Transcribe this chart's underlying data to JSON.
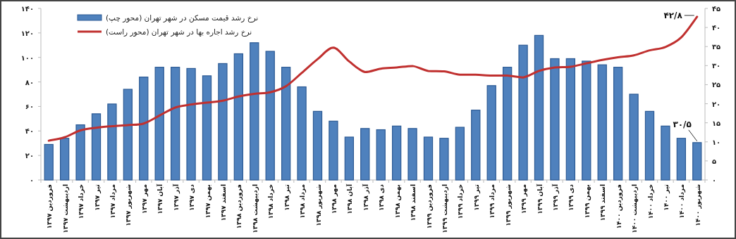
{
  "chart_data": {
    "type": "bar",
    "categories": [
      "فروردین ۱۳۹۷",
      "اردیبهشت ۱۳۹۷",
      "خرداد ۱۳۹۷",
      "تیر ۱۳۹۷",
      "مرداد ۱۳۹۷",
      "شهریور ۱۳۹۷",
      "مهر ۱۳۹۷",
      "آبان ۱۳۹۷",
      "آذر ۱۳۹۷",
      "دی ۱۳۹۷",
      "بهمن ۱۳۹۷",
      "اسفند ۱۳۹۷",
      "فروردین ۱۳۹۸",
      "اردیبهشت ۱۳۹۸",
      "خرداد ۱۳۹۸",
      "تیر ۱۳۹۸",
      "مرداد ۱۳۹۸",
      "شهریور ۱۳۹۸",
      "مهر ۱۳۹۸",
      "آبان ۱۳۹۸",
      "آذر ۱۳۹۸",
      "دی ۱۳۹۸",
      "بهمن ۱۳۹۸",
      "اسفند ۱۳۹۸",
      "فروردین ۱۳۹۹",
      "اردیبهشت ۱۳۹۹",
      "خرداد ۱۳۹۹",
      "تیر ۱۳۹۹",
      "مرداد ۱۳۹۹",
      "شهریور ۱۳۹۹",
      "مهر ۱۳۹۹",
      "آبان ۱۳۹۹",
      "آذر ۱۳۹۹",
      "دی ۱۳۹۹",
      "بهمن ۱۳۹۹",
      "اسفند ۱۳۹۹",
      "فروردین ۱۴۰۰",
      "اردیبهشت ۱۴۰۰",
      "خرداد ۱۴۰۰",
      "تیر ۱۴۰۰",
      "مرداد ۱۴۰۰",
      "شهریور ۱۴۰۰"
    ],
    "series": [
      {
        "name": "نرخ رشد قیمت مسکن در شهر تهران (محور چپ)",
        "color": "#4f81bd",
        "values": [
          29,
          34,
          45,
          54,
          62,
          74,
          84,
          92,
          92,
          91,
          85,
          95,
          103,
          112,
          105,
          92,
          76,
          56,
          48,
          35,
          42,
          41,
          44,
          42,
          35,
          34,
          43,
          57,
          77,
          92,
          110,
          118,
          99,
          99,
          97,
          94,
          92,
          70,
          56,
          44,
          34,
          30.5
        ]
      },
      {
        "name": "نرخ رشد اجاره بها در شهر تهران (محور راست)",
        "type": "line",
        "axis": "y2",
        "color": "#c0302f",
        "values": [
          10.3,
          11.2,
          13,
          13.7,
          14.1,
          14.4,
          14.8,
          16.9,
          19,
          19.8,
          20.3,
          20.8,
          21.9,
          22.6,
          23,
          24.6,
          28.1,
          31.7,
          34.7,
          31.1,
          28.3,
          29.2,
          29.5,
          29.9,
          28.6,
          28.5,
          27.6,
          27.6,
          27.4,
          27.4,
          26.9,
          28.6,
          29.5,
          29.7,
          30.6,
          31.5,
          32.2,
          32.7,
          34,
          34.9,
          37.4,
          42.8
        ]
      }
    ],
    "ylim": [
      0,
      140
    ],
    "yticks": [
      {
        "value": 0,
        "label": "۰"
      },
      {
        "value": 20,
        "label": "۲۰"
      },
      {
        "value": 40,
        "label": "۴۰"
      },
      {
        "value": 60,
        "label": "۶۰"
      },
      {
        "value": 80,
        "label": "۸۰"
      },
      {
        "value": 100,
        "label": "۱۰۰"
      },
      {
        "value": 120,
        "label": "۱۲۰"
      },
      {
        "value": 140,
        "label": "۱۴۰"
      }
    ],
    "y2lim": [
      0,
      45
    ],
    "y2ticks": [
      {
        "value": 0,
        "label": "۰"
      },
      {
        "value": 5,
        "label": "۵"
      },
      {
        "value": 10,
        "label": "۱۰"
      },
      {
        "value": 15,
        "label": "۱۵"
      },
      {
        "value": 20,
        "label": "۲۰"
      },
      {
        "value": 25,
        "label": "۲۵"
      },
      {
        "value": 30,
        "label": "۳۰"
      },
      {
        "value": 35,
        "label": "۳۵"
      },
      {
        "value": 40,
        "label": "۴۰"
      },
      {
        "value": 45,
        "label": "۴۵"
      }
    ],
    "annotations": [
      "۴۲/۸",
      {
        "text": "۳۰/۵",
        "x": "شهریور ۱۴۰۰",
        "y": 30.5
      }
    ],
    "legend": "top left",
    "grid": false
  }
}
